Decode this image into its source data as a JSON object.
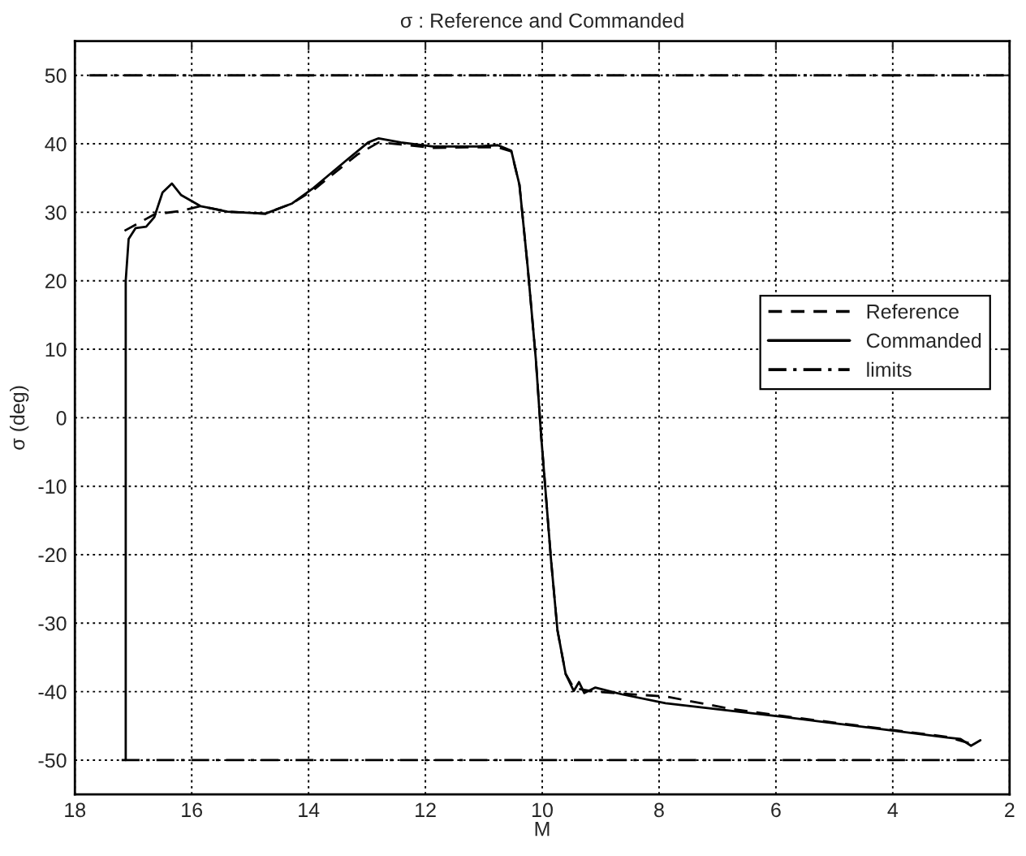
{
  "chart_data": {
    "type": "line",
    "title": "σ : Reference and Commanded",
    "xlabel": "M",
    "ylabel": "σ (deg)",
    "xlim": [
      18,
      2
    ],
    "xticks": [
      18,
      16,
      14,
      12,
      10,
      8,
      6,
      4,
      2
    ],
    "ylim": [
      -55,
      55
    ],
    "yticks": [
      -50,
      -40,
      -30,
      -20,
      -10,
      0,
      10,
      20,
      30,
      40,
      50
    ],
    "grid": true,
    "legend": "right",
    "series": [
      {
        "name": "Reference",
        "color": "#000000",
        "line_style": "dashed",
        "x": [
          17.15,
          16.64,
          16.18,
          15.85,
          15.39,
          14.74,
          14.28,
          13.91,
          13.17,
          12.8,
          12.42,
          11.87,
          11.13,
          10.76,
          10.53,
          10.39,
          10.25,
          10.11,
          10.02,
          9.85,
          9.74,
          9.6,
          9.46,
          9.09,
          8.63,
          7.89,
          6.78,
          5.85,
          4.46,
          3.07,
          2.7
        ],
        "values": [
          27.3,
          29.7,
          30.2,
          30.9,
          30.1,
          29.8,
          31.3,
          33.3,
          38.4,
          40.2,
          39.9,
          39.4,
          39.5,
          39.5,
          38.9,
          34,
          22.1,
          8.6,
          -2.5,
          -20.7,
          -31,
          -37.4,
          -39.5,
          -40,
          -40.3,
          -40.7,
          -42.5,
          -43.6,
          -45.1,
          -46.6,
          -47.5
        ]
      },
      {
        "name": "Commanded",
        "color": "#000000",
        "line_style": "solid",
        "x": [
          17.13,
          17.13,
          17.08,
          16.96,
          16.78,
          16.64,
          16.5,
          16.34,
          16.18,
          15.85,
          15.39,
          14.74,
          14.28,
          13.91,
          13.35,
          12.98,
          12.8,
          12.42,
          11.87,
          11.13,
          10.76,
          10.53,
          10.39,
          10.25,
          10.11,
          10.02,
          9.85,
          9.74,
          9.6,
          9.46,
          9.37,
          9.28,
          9.09,
          8.63,
          7.89,
          6.78,
          5.85,
          4.46,
          3.07,
          2.84,
          2.66,
          2.5
        ],
        "values": [
          -50,
          20,
          26.1,
          27.7,
          27.9,
          29.3,
          32.9,
          34.2,
          32.5,
          30.9,
          30.1,
          29.8,
          31.3,
          33.6,
          37.6,
          40.2,
          40.8,
          40.2,
          39.6,
          39.6,
          39.8,
          39,
          34,
          22.1,
          8.6,
          -2.5,
          -20.7,
          -31,
          -37.4,
          -39.9,
          -38.6,
          -40.2,
          -39.4,
          -40.4,
          -41.7,
          -42.8,
          -43.7,
          -45.2,
          -46.7,
          -46.9,
          -47.9,
          -47.1
        ]
      },
      {
        "name": "limits",
        "color": "#000000",
        "line_style": "dashdot",
        "x": [
          17.75,
          2.1
        ],
        "values": [
          50,
          50
        ]
      },
      {
        "color": "#000000",
        "line_style": "dashdot",
        "x": [
          17.2,
          2.6
        ],
        "values": [
          -50,
          -50
        ]
      }
    ]
  }
}
